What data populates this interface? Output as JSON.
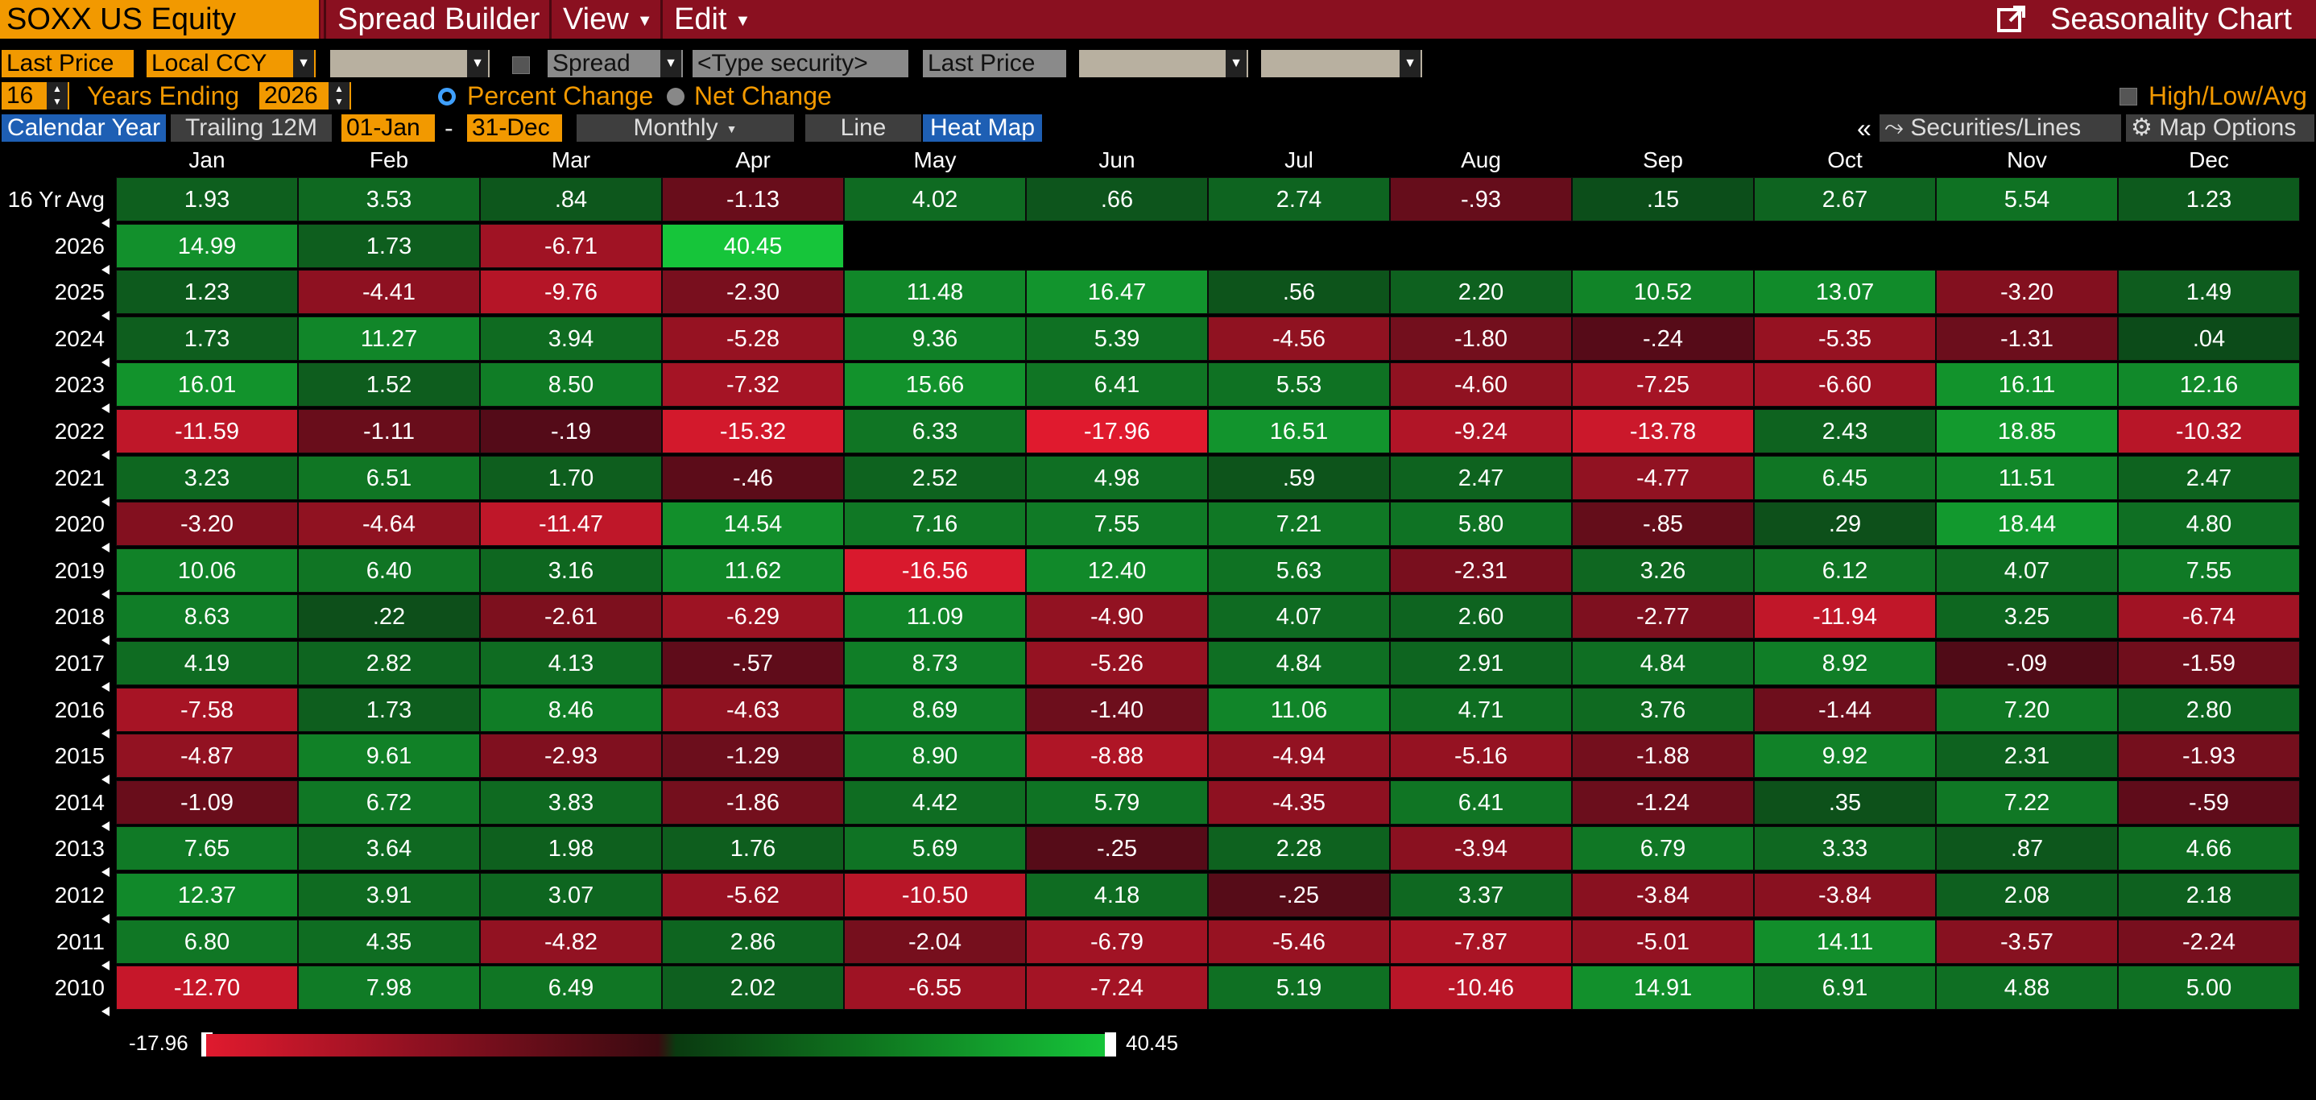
{
  "title_bar": {
    "security": "SOXX US Equity",
    "menus": [
      "Spread Builder",
      "View",
      "Edit"
    ],
    "right_title": "Seasonality Chart",
    "right_icon": "export-icon"
  },
  "row1": {
    "price_field": "Last Price",
    "currency": "Local CCY",
    "spread_label": "Spread",
    "type_security_placeholder": "<Type security>",
    "second_price_field": "Last Price"
  },
  "row2": {
    "years": "16",
    "years_ending_label": "Years Ending",
    "end_year": "2026",
    "percent_change": "Percent Change",
    "net_change": "Net Change",
    "high_low_avg": "High/Low/Avg"
  },
  "row3": {
    "calendar_year": "Calendar Year",
    "trailing": "Trailing 12M",
    "start_date": "01-Jan",
    "dash": "-",
    "end_date": "31-Dec",
    "periodicity": "Monthly",
    "line": "Line",
    "heat_map": "Heat Map",
    "collapse": "«",
    "securities_lines": "Securities/Lines",
    "map_options": "Map Options"
  },
  "colors": {
    "min": "#e01a2e",
    "neg_dark": "#3a0a10",
    "pos_dark": "#0a3a10",
    "max": "#16c53a",
    "accent": "#f29900",
    "title": "#8a1020"
  },
  "chart_data": {
    "type": "heatmap",
    "columns": [
      "Jan",
      "Feb",
      "Mar",
      "Apr",
      "May",
      "Jun",
      "Jul",
      "Aug",
      "Sep",
      "Oct",
      "Nov",
      "Dec"
    ],
    "rows": [
      {
        "label": "16 Yr Avg",
        "values": [
          "1.93",
          "3.53",
          ".84",
          "-1.13",
          "4.02",
          ".66",
          "2.74",
          "-.93",
          ".15",
          "2.67",
          "5.54",
          "1.23"
        ]
      },
      {
        "label": "2026",
        "values": [
          "14.99",
          "1.73",
          "-6.71",
          "40.45"
        ]
      },
      {
        "label": "2025",
        "values": [
          "1.23",
          "-4.41",
          "-9.76",
          "-2.30",
          "11.48",
          "16.47",
          ".56",
          "2.20",
          "10.52",
          "13.07",
          "-3.20",
          "1.49"
        ]
      },
      {
        "label": "2024",
        "values": [
          "1.73",
          "11.27",
          "3.94",
          "-5.28",
          "9.36",
          "5.39",
          "-4.56",
          "-1.80",
          "-.24",
          "-5.35",
          "-1.31",
          ".04"
        ]
      },
      {
        "label": "2023",
        "values": [
          "16.01",
          "1.52",
          "8.50",
          "-7.32",
          "15.66",
          "6.41",
          "5.53",
          "-4.60",
          "-7.25",
          "-6.60",
          "16.11",
          "12.16"
        ]
      },
      {
        "label": "2022",
        "values": [
          "-11.59",
          "-1.11",
          "-.19",
          "-15.32",
          "6.33",
          "-17.96",
          "16.51",
          "-9.24",
          "-13.78",
          "2.43",
          "18.85",
          "-10.32"
        ]
      },
      {
        "label": "2021",
        "values": [
          "3.23",
          "6.51",
          "1.70",
          "-.46",
          "2.52",
          "4.98",
          ".59",
          "2.47",
          "-4.77",
          "6.45",
          "11.51",
          "2.47"
        ]
      },
      {
        "label": "2020",
        "values": [
          "-3.20",
          "-4.64",
          "-11.47",
          "14.54",
          "7.16",
          "7.55",
          "7.21",
          "5.80",
          "-.85",
          ".29",
          "18.44",
          "4.80"
        ]
      },
      {
        "label": "2019",
        "values": [
          "10.06",
          "6.40",
          "3.16",
          "11.62",
          "-16.56",
          "12.40",
          "5.63",
          "-2.31",
          "3.26",
          "6.12",
          "4.07",
          "7.55"
        ]
      },
      {
        "label": "2018",
        "values": [
          "8.63",
          ".22",
          "-2.61",
          "-6.29",
          "11.09",
          "-4.90",
          "4.07",
          "2.60",
          "-2.77",
          "-11.94",
          "3.25",
          "-6.74"
        ]
      },
      {
        "label": "2017",
        "values": [
          "4.19",
          "2.82",
          "4.13",
          "-.57",
          "8.73",
          "-5.26",
          "4.84",
          "2.91",
          "4.84",
          "8.92",
          "-.09",
          "-1.59"
        ]
      },
      {
        "label": "2016",
        "values": [
          "-7.58",
          "1.73",
          "8.46",
          "-4.63",
          "8.69",
          "-1.40",
          "11.06",
          "4.71",
          "3.76",
          "-1.44",
          "7.20",
          "2.80"
        ]
      },
      {
        "label": "2015",
        "values": [
          "-4.87",
          "9.61",
          "-2.93",
          "-1.29",
          "8.90",
          "-8.88",
          "-4.94",
          "-5.16",
          "-1.88",
          "9.92",
          "2.31",
          "-1.93"
        ]
      },
      {
        "label": "2014",
        "values": [
          "-1.09",
          "6.72",
          "3.83",
          "-1.86",
          "4.42",
          "5.79",
          "-4.35",
          "6.41",
          "-1.24",
          ".35",
          "7.22",
          "-.59"
        ]
      },
      {
        "label": "2013",
        "values": [
          "7.65",
          "3.64",
          "1.98",
          "1.76",
          "5.69",
          "-.25",
          "2.28",
          "-3.94",
          "6.79",
          "3.33",
          ".87",
          "4.66"
        ]
      },
      {
        "label": "2012",
        "values": [
          "12.37",
          "3.91",
          "3.07",
          "-5.62",
          "-10.50",
          "4.18",
          "-.25",
          "3.37",
          "-3.84",
          "-3.84",
          "2.08",
          "2.18"
        ]
      },
      {
        "label": "2011",
        "values": [
          "6.80",
          "4.35",
          "-4.82",
          "2.86",
          "-2.04",
          "-6.79",
          "-5.46",
          "-7.87",
          "-5.01",
          "14.11",
          "-3.57",
          "-2.24"
        ]
      },
      {
        "label": "2010",
        "values": [
          "-12.70",
          "7.98",
          "6.49",
          "2.02",
          "-6.55",
          "-7.24",
          "5.19",
          "-10.46",
          "14.91",
          "6.91",
          "4.88",
          "5.00"
        ]
      }
    ],
    "scale_min": "-17.96",
    "scale_max": "40.45"
  }
}
